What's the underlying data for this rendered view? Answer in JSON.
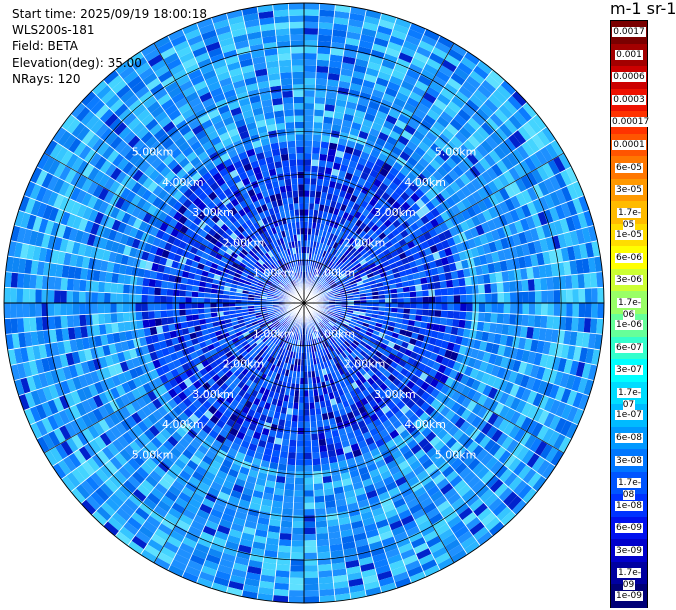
{
  "info": {
    "start_time": "Start time: 2025/09/19 18:00:18",
    "instrument": "WLS200s-181",
    "field": "Field: BETA",
    "elevation": "Elevation(deg): 35.00",
    "nrays": "NRays: 120"
  },
  "colorbar": {
    "unit_title": "m-1 sr-1",
    "labels": [
      "0.0017",
      "0.001",
      "0.0006",
      "0.0003",
      "0.00017",
      "0.0001",
      "6e-05",
      "3e-05",
      "1.7e-05",
      "1e-05",
      "6e-06",
      "3e-06",
      "1.7e-06",
      "1e-06",
      "6e-07",
      "3e-07",
      "1.7e-07",
      "1e-07",
      "6e-08",
      "3e-08",
      "1.7e-08",
      "1e-08",
      "6e-09",
      "3e-09",
      "1.7e-09",
      "1e-09"
    ],
    "colors": [
      "#7a0000",
      "#a30000",
      "#cc0000",
      "#ee1100",
      "#ff3300",
      "#ff5500",
      "#ff7700",
      "#ff9900",
      "#ffbb00",
      "#ffdd00",
      "#ffff00",
      "#ccff33",
      "#99ff66",
      "#66ff99",
      "#33ffcc",
      "#00ffff",
      "#00ddff",
      "#00bbff",
      "#0099ff",
      "#0077ff",
      "#0055ff",
      "#0033ff",
      "#0011ee",
      "#0000cc",
      "#0000a0",
      "#000077"
    ]
  },
  "chart_data": {
    "type": "heatmap",
    "title": "",
    "field": "BETA",
    "projection": "polar (PPI)",
    "elevation_deg": 35.0,
    "n_rays": 120,
    "range_rings_km": [
      1.0,
      2.0,
      3.0,
      4.0,
      5.0
    ],
    "range_ring_labels": [
      "1.00km",
      "2.00km",
      "3.00km",
      "4.00km",
      "5.00km"
    ],
    "max_range_km": 7.0,
    "value_scale": "log",
    "value_range": [
      1e-09,
      0.0017
    ],
    "dominant_value_band": "3e-08 to 1e-07",
    "inner_value_band": "1e-09 to 3e-08"
  }
}
